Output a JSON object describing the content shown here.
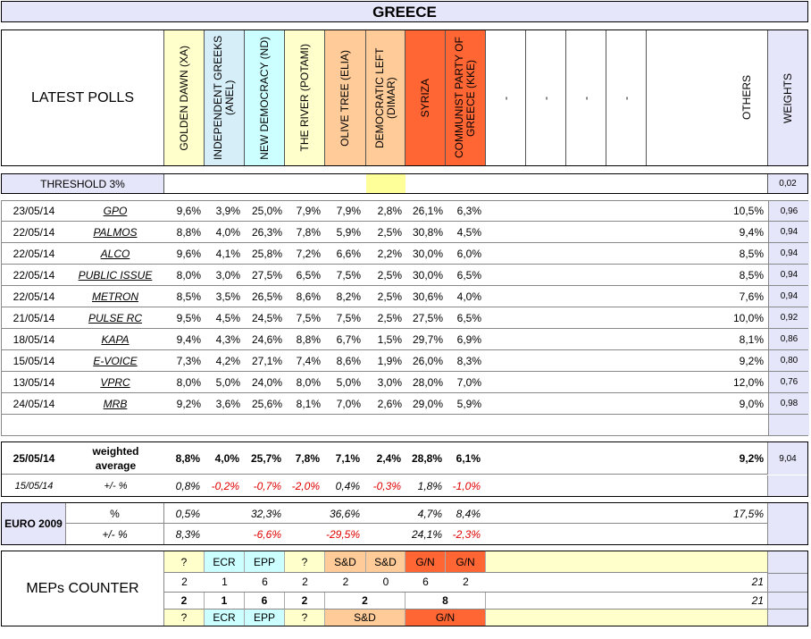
{
  "title": "GREECE",
  "header": {
    "latest_polls": "LATEST POLLS",
    "weights": "WEIGHTS",
    "others": "OTHERS",
    "parties": [
      {
        "name": "GOLDEN DAWN (XA)",
        "color": "#ffffcc"
      },
      {
        "name": "INDEPENDENT GREEKS (ANEL)",
        "color": "#d6eef8"
      },
      {
        "name": "NEW DEMOCRACY (ND)",
        "color": "#ccffff"
      },
      {
        "name": "THE RIVER (POTAMI)",
        "color": "#ffffcc"
      },
      {
        "name": "OLIVE TREE (ELIA)",
        "color": "#ffcc99"
      },
      {
        "name": "DEMOCRATIC LEFT (DIMAR)",
        "color": "#ffcc99"
      },
      {
        "name": "SYRIZA",
        "color": "#ff6633"
      },
      {
        "name": "COMMUNIST PARTY OF GREECE (KKE)",
        "color": "#ff6633"
      },
      {
        "name": "-",
        "color": "#ffffff"
      },
      {
        "name": "-",
        "color": "#ffffff"
      },
      {
        "name": "-",
        "color": "#ffffff"
      },
      {
        "name": "-",
        "color": "#ffffff"
      }
    ]
  },
  "threshold": {
    "label": "THRESHOLD 3%",
    "weight": "0,02"
  },
  "polls": [
    {
      "date": "23/05/14",
      "pollster": "GPO",
      "values": [
        "9,6%",
        "3,9%",
        "25,0%",
        "7,9%",
        "7,9%",
        "2,8%",
        "26,1%",
        "6,3%"
      ],
      "others": "10,5%",
      "weight": "0,96"
    },
    {
      "date": "22/05/14",
      "pollster": "PALMOS",
      "values": [
        "8,8%",
        "4,0%",
        "26,3%",
        "7,8%",
        "5,9%",
        "2,5%",
        "30,8%",
        "4,5%"
      ],
      "others": "9,4%",
      "weight": "0,94"
    },
    {
      "date": "22/05/14",
      "pollster": "ALCO",
      "values": [
        "9,6%",
        "4,1%",
        "25,8%",
        "7,2%",
        "6,6%",
        "2,2%",
        "30,0%",
        "6,0%"
      ],
      "others": "8,5%",
      "weight": "0,94"
    },
    {
      "date": "22/05/14",
      "pollster": "PUBLIC ISSUE",
      "values": [
        "8,0%",
        "3,0%",
        "27,5%",
        "6,5%",
        "7,5%",
        "2,5%",
        "30,0%",
        "6,5%"
      ],
      "others": "8,5%",
      "weight": "0,94"
    },
    {
      "date": "22/05/14",
      "pollster": "METRON",
      "values": [
        "8,5%",
        "3,5%",
        "26,5%",
        "8,6%",
        "8,2%",
        "2,5%",
        "30,6%",
        "4,0%"
      ],
      "others": "7,6%",
      "weight": "0,94"
    },
    {
      "date": "21/05/14",
      "pollster": "PULSE RC",
      "values": [
        "9,5%",
        "4,5%",
        "24,5%",
        "7,5%",
        "7,5%",
        "2,5%",
        "27,5%",
        "6,5%"
      ],
      "others": "10,0%",
      "weight": "0,92"
    },
    {
      "date": "18/05/14",
      "pollster": "KAPA",
      "values": [
        "9,4%",
        "4,3%",
        "24,6%",
        "8,8%",
        "6,7%",
        "1,5%",
        "29,7%",
        "6,9%"
      ],
      "others": "8,1%",
      "weight": "0,86"
    },
    {
      "date": "15/05/14",
      "pollster": "E-VOICE",
      "values": [
        "7,3%",
        "4,2%",
        "27,1%",
        "7,4%",
        "8,6%",
        "1,9%",
        "26,0%",
        "8,3%"
      ],
      "others": "9,2%",
      "weight": "0,80"
    },
    {
      "date": "13/05/14",
      "pollster": "VPRC",
      "values": [
        "8,0%",
        "5,0%",
        "24,0%",
        "8,0%",
        "5,0%",
        "3,0%",
        "28,0%",
        "7,0%"
      ],
      "others": "12,0%",
      "weight": "0,76"
    },
    {
      "date": "24/05/14",
      "pollster": "MRB",
      "values": [
        "9,2%",
        "3,6%",
        "25,6%",
        "8,1%",
        "7,0%",
        "2,6%",
        "29,0%",
        "5,9%"
      ],
      "others": "9,0%",
      "weight": "0,98"
    }
  ],
  "weighted": {
    "date": "25/05/14",
    "label": "weighted average",
    "values": [
      "8,8%",
      "4,0%",
      "25,7%",
      "7,8%",
      "7,1%",
      "2,4%",
      "28,8%",
      "6,1%"
    ],
    "others": "9,2%",
    "weight": "9,04",
    "diff_date": "15/05/14",
    "diff_label": "+/- %",
    "diffs": [
      "0,8%",
      "-0,2%",
      "-0,7%",
      "-2,0%",
      "0,4%",
      "-0,3%",
      "1,8%",
      "-1,0%"
    ]
  },
  "euro2009": {
    "label": "EURO 2009",
    "pct_label": "%",
    "pct": [
      "0,5%",
      "",
      "32,3%",
      "",
      "36,6%",
      "",
      "4,7%",
      "8,4%"
    ],
    "others": "17,5%",
    "diff_label": "+/- %",
    "diffs": [
      "8,3%",
      "",
      "-6,6%",
      "",
      "-29,5%",
      "",
      "24,1%",
      "-2,3%"
    ]
  },
  "meps": {
    "label": "MEPs COUNTER",
    "groups": [
      "?",
      "ECR",
      "EPP",
      "?",
      "S&D",
      "S&D",
      "G/N",
      "G/N"
    ],
    "group_colors": [
      "#ffffcc",
      "#ccffff",
      "#ccffff",
      "#ffffcc",
      "#ffcc99",
      "#ffcc99",
      "#ff6633",
      "#ff6633"
    ],
    "seats": [
      "2",
      "1",
      "6",
      "2",
      "2",
      "0",
      "6",
      "2"
    ],
    "total": "21",
    "merged_seats": [
      "2",
      "1",
      "6",
      "2",
      "2",
      "8"
    ],
    "merged_total": "21",
    "merged_groups": [
      "?",
      "ECR",
      "EPP",
      "?",
      "S&D",
      "G/N"
    ]
  }
}
